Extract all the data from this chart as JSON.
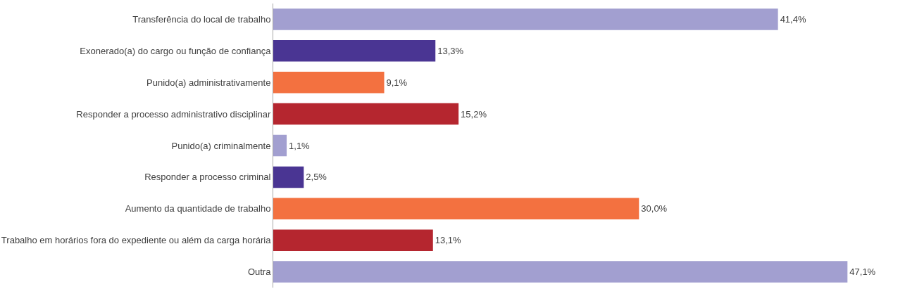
{
  "chart_data": {
    "type": "bar",
    "orientation": "horizontal",
    "categories": [
      "Transferência do local de trabalho",
      "Exonerado(a) do cargo ou função de confiança",
      "Punido(a) administrativamente",
      "Responder a processo administrativo disciplinar",
      "Punido(a) criminalmente",
      "Responder a processo criminal",
      "Aumento da quantidade de trabalho",
      "Trabalho em horários fora do expediente ou além da carga horária",
      "Outra"
    ],
    "values": [
      41.4,
      13.3,
      9.1,
      15.2,
      1.1,
      2.5,
      30.0,
      13.1,
      47.1
    ],
    "value_labels": [
      "41,4%",
      "13,3%",
      "9,1%",
      "15,2%",
      "1,1%",
      "2,5%",
      "30,0%",
      "13,1%",
      "47,1%"
    ],
    "colors": [
      "#a29fd0",
      "#4a3593",
      "#f37140",
      "#b5262f",
      "#a29fd0",
      "#4a3593",
      "#f37140",
      "#b5262f",
      "#a29fd0"
    ],
    "legend": false
  }
}
